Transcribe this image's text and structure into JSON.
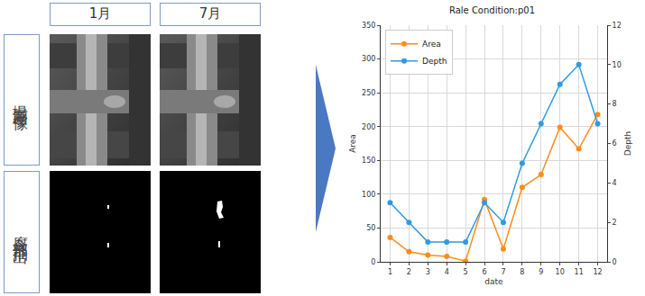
{
  "image_panel": {
    "columns": [
      "1月",
      "7月"
    ],
    "rows": [
      "撮影画像",
      "腐食部抽出"
    ]
  },
  "chart_data": {
    "type": "line",
    "title": "Rale Condition:p01",
    "x_label": "date",
    "y_label": "Area",
    "y2_label": "Depth",
    "x": [
      1,
      2,
      3,
      4,
      5,
      6,
      7,
      8,
      9,
      10,
      11,
      12
    ],
    "xlim": [
      0.5,
      12.5
    ],
    "xticks": [
      1,
      2,
      3,
      4,
      5,
      6,
      7,
      8,
      9,
      10,
      11,
      12
    ],
    "ylim": [
      0,
      350
    ],
    "yticks": [
      0,
      50,
      100,
      150,
      200,
      250,
      300,
      350
    ],
    "y2lim": [
      0,
      12
    ],
    "y2ticks": [
      0,
      2,
      4,
      6,
      8,
      10,
      12
    ],
    "grid": true,
    "legend": "top left",
    "marker": "circle",
    "series": [
      {
        "name": "Area",
        "color": "#ff8c1a",
        "values": [
          36,
          15,
          10,
          8,
          1,
          92,
          19,
          110,
          129,
          199,
          167,
          218
        ]
      },
      {
        "name": "Depth",
        "color": "#2f9ae0",
        "axis": "y2",
        "values": [
          3,
          2,
          1,
          1,
          1,
          3,
          2,
          5,
          7,
          9,
          10,
          7
        ]
      }
    ]
  }
}
